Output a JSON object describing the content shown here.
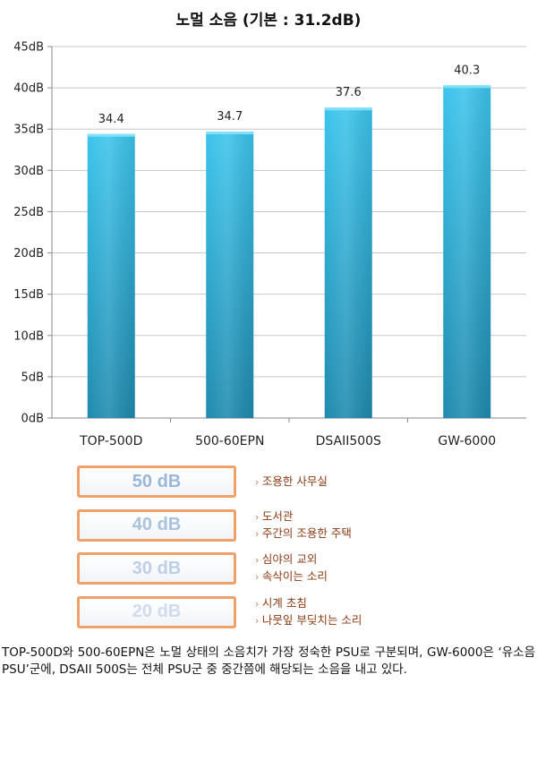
{
  "chart_data": {
    "type": "bar",
    "title": "노멀 소음 (기본 : 31.2dB)",
    "categories": [
      "TOP-500D",
      "500-60EPN",
      "DSAII500S",
      "GW-6000"
    ],
    "values": [
      34.4,
      34.7,
      37.6,
      40.3
    ],
    "value_labels": [
      "34.4",
      "34.7",
      "37.6",
      "40.3"
    ],
    "ylim": [
      0,
      45
    ],
    "yticks": [
      "0dB",
      "5dB",
      "10dB",
      "15dB",
      "20dB",
      "25dB",
      "30dB",
      "35dB",
      "40dB",
      "45dB"
    ],
    "ytick_step": 5,
    "grid": true,
    "bar_colors": {
      "top": "#3cc4ec",
      "bottom": "#1f8aae"
    },
    "grid_color": "#c8c8c8"
  },
  "legend": [
    {
      "level": "50 dB",
      "color": "#9bb7d8",
      "border": "#f0a06a",
      "items": [
        "조용한 사무실"
      ]
    },
    {
      "level": "40 dB",
      "color": "#aac2de",
      "border": "#f0a06a",
      "items": [
        "도서관",
        "주간의 조용한 주택"
      ]
    },
    {
      "level": "30 dB",
      "color": "#bccfe6",
      "border": "#f0a06a",
      "items": [
        "심야의 교외",
        "속삭이는 소리"
      ]
    },
    {
      "level": "20 dB",
      "color": "#cfdced",
      "border": "#f0a06a",
      "items": [
        "시계 초침",
        "나뭇잎 부딪치는 소리"
      ]
    }
  ],
  "caption": "TOP-500D와 500-60EPN은 노멀 상태의 소음치가 가장 정숙한 PSU로 구분되며, GW-6000은 ‘유소음 PSU’군에, DSAII 500S는 전체 PSU군 중 중간쯤에 해당되는 소음을 내고 있다."
}
